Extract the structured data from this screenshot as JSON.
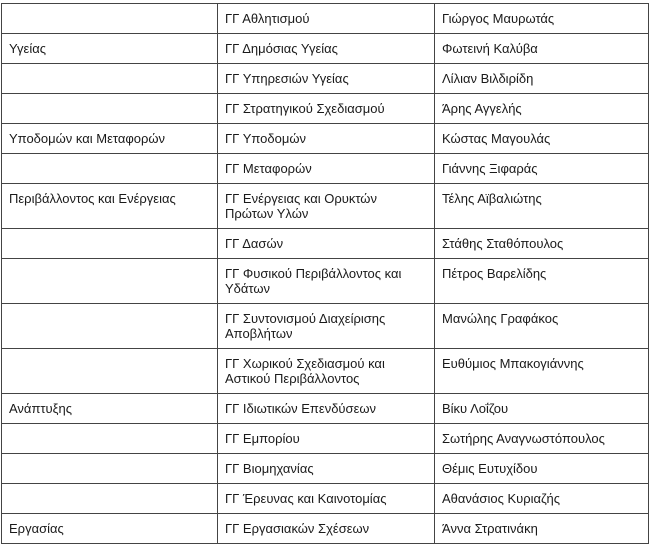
{
  "rows": [
    {
      "ministry": "",
      "directorate": "ΓΓ Αθλητισμού",
      "person": "Γιώργος Μαυρωτάς"
    },
    {
      "ministry": "Υγείας",
      "directorate": "ΓΓ Δημόσιας Υγείας",
      "person": "Φωτεινή Καλύβα"
    },
    {
      "ministry": "",
      "directorate": "ΓΓ Υπηρεσιών Υγείας",
      "person": "Λίλιαν Βιλδιρίδη"
    },
    {
      "ministry": "",
      "directorate": "ΓΓ Στρατηγικού Σχεδιασμού",
      "person": "Άρης Αγγελής"
    },
    {
      "ministry": "Υποδομών και Μεταφορών",
      "directorate": "ΓΓ Υποδομών",
      "person": "Κώστας Μαγουλάς"
    },
    {
      "ministry": "",
      "directorate": "ΓΓ Μεταφορών",
      "person": "Γιάννης Ξιφαράς"
    },
    {
      "ministry": "Περιβάλλοντος και Ενέργειας",
      "directorate": "ΓΓ Ενέργειας και Ορυκτών Πρώτων Υλών",
      "person": "Τέλης Αϊβαλιώτης"
    },
    {
      "ministry": "",
      "directorate": "ΓΓ Δασών",
      "person": "Στάθης Σταθόπουλος"
    },
    {
      "ministry": "",
      "directorate": "ΓΓ Φυσικού Περιβάλλοντος και Υδάτων",
      "person": "Πέτρος Βαρελίδης"
    },
    {
      "ministry": "",
      "directorate": "ΓΓ Συντονισμού Διαχείρισης Αποβλήτων",
      "person": "Μανώλης Γραφάκος"
    },
    {
      "ministry": "",
      "directorate": "ΓΓ Χωρικού Σχεδιασμού και Αστικού Περιβάλλοντος",
      "person": "Ευθύμιος Μπακογιάννης"
    },
    {
      "ministry": "Ανάπτυξης",
      "directorate": "ΓΓ Ιδιωτικών Επενδύσεων",
      "person": "Βίκυ Λοΐζου"
    },
    {
      "ministry": "",
      "directorate": "ΓΓ Εμπορίου",
      "person": "Σωτήρης Αναγνωστόπουλος"
    },
    {
      "ministry": "",
      "directorate": "ΓΓ Βιομηχανίας",
      "person": "Θέμις Ευτυχίδου"
    },
    {
      "ministry": "",
      "directorate": "ΓΓ Έρευνας και Καινοτομίας",
      "person": "Αθανάσιος Κυριαζής"
    },
    {
      "ministry": "Εργασίας",
      "directorate": "ΓΓ Εργασιακών Σχέσεων",
      "person": "Άννα Στρατινάκη"
    }
  ]
}
